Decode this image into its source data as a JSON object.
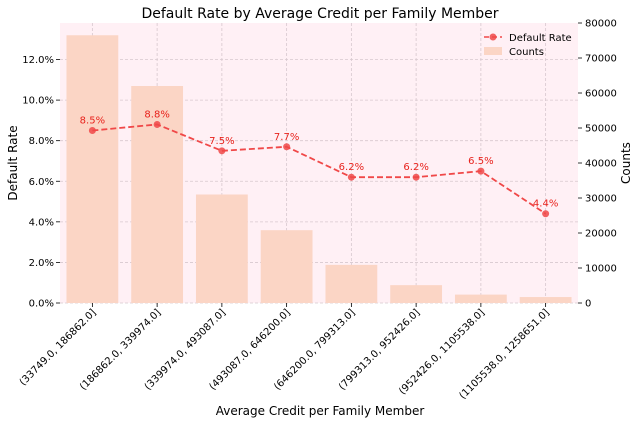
{
  "chart_data": {
    "type": "bar",
    "title": "Default Rate by Average Credit per Family Member",
    "xlabel": "Average Credit per Family Member",
    "ylabel_left": "Default Rate",
    "ylabel_right": "Counts",
    "categories": [
      "(33749.0, 186862.0]",
      "(186862.0, 339974.0]",
      "(339974.0, 493087.0]",
      "(493087.0, 646200.0]",
      "(646200.0, 799313.0]",
      "(799313.0, 952426.0]",
      "(952426.0, 1105538.0]",
      "(1105538.0, 1258651.0]"
    ],
    "series": [
      {
        "name": "Counts",
        "type": "bar",
        "axis": "right",
        "color": "#fbd5c5",
        "values": [
          76500,
          62000,
          31000,
          20800,
          10900,
          5100,
          2400,
          1700
        ]
      },
      {
        "name": "Default Rate",
        "type": "line",
        "axis": "left",
        "color": "#f04848",
        "values": [
          0.085,
          0.088,
          0.075,
          0.077,
          0.062,
          0.062,
          0.065,
          0.044
        ],
        "labels": [
          "8.5%",
          "8.8%",
          "7.5%",
          "7.7%",
          "6.2%",
          "6.2%",
          "6.5%",
          "4.4%"
        ]
      }
    ],
    "ylim_left": [
      0,
      0.138
    ],
    "ylim_right": [
      0,
      80000
    ],
    "yticks_left": [
      "0.0%",
      "2.0%",
      "4.0%",
      "6.0%",
      "8.0%",
      "10.0%",
      "12.0%"
    ],
    "yticks_left_values": [
      0,
      0.02,
      0.04,
      0.06,
      0.08,
      0.1,
      0.12
    ],
    "yticks_right": [
      "0",
      "10000",
      "20000",
      "30000",
      "40000",
      "50000",
      "60000",
      "70000",
      "80000"
    ],
    "yticks_right_values": [
      0,
      10000,
      20000,
      30000,
      40000,
      50000,
      60000,
      70000,
      80000
    ],
    "grid": true,
    "legend_position": "top-right",
    "background": "#fff0f5"
  }
}
